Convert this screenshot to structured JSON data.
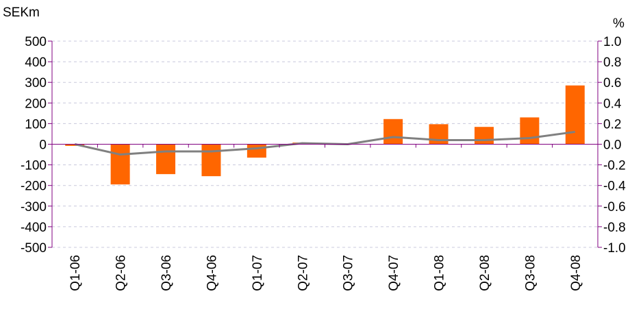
{
  "chart_data": {
    "type": "bar",
    "title": "",
    "left_axis": {
      "unit_label": "SEKm",
      "ylim": [
        -500,
        500
      ],
      "ticks": [
        500,
        400,
        300,
        200,
        100,
        0,
        -100,
        -200,
        -300,
        -400,
        -500
      ]
    },
    "right_axis": {
      "unit_label": "%",
      "ylim": [
        -1.0,
        1.0
      ],
      "ticks": [
        "1.0",
        "0.8",
        "0.6",
        "0.4",
        "0.2",
        "0.0",
        "-0.2",
        "-0.4",
        "-0.6",
        "-0.8",
        "-1.0"
      ]
    },
    "categories": [
      "Q1-06",
      "Q2-06",
      "Q3-06",
      "Q4-06",
      "Q1-07",
      "Q2-07",
      "Q3-07",
      "Q4-07",
      "Q1-08",
      "Q2-08",
      "Q3-08",
      "Q4-08"
    ],
    "series": [
      {
        "type": "bar",
        "axis": "left",
        "color": "#ff6600",
        "values": [
          -8,
          -195,
          -145,
          -155,
          -65,
          8,
          0,
          122,
          97,
          84,
          130,
          285
        ]
      },
      {
        "type": "line",
        "axis": "right",
        "color": "#808080",
        "values": [
          0.0,
          -0.1,
          -0.07,
          -0.07,
          -0.04,
          0.01,
          0.0,
          0.07,
          0.04,
          0.04,
          0.06,
          0.12
        ]
      }
    ],
    "grid": true,
    "legend": "none"
  }
}
